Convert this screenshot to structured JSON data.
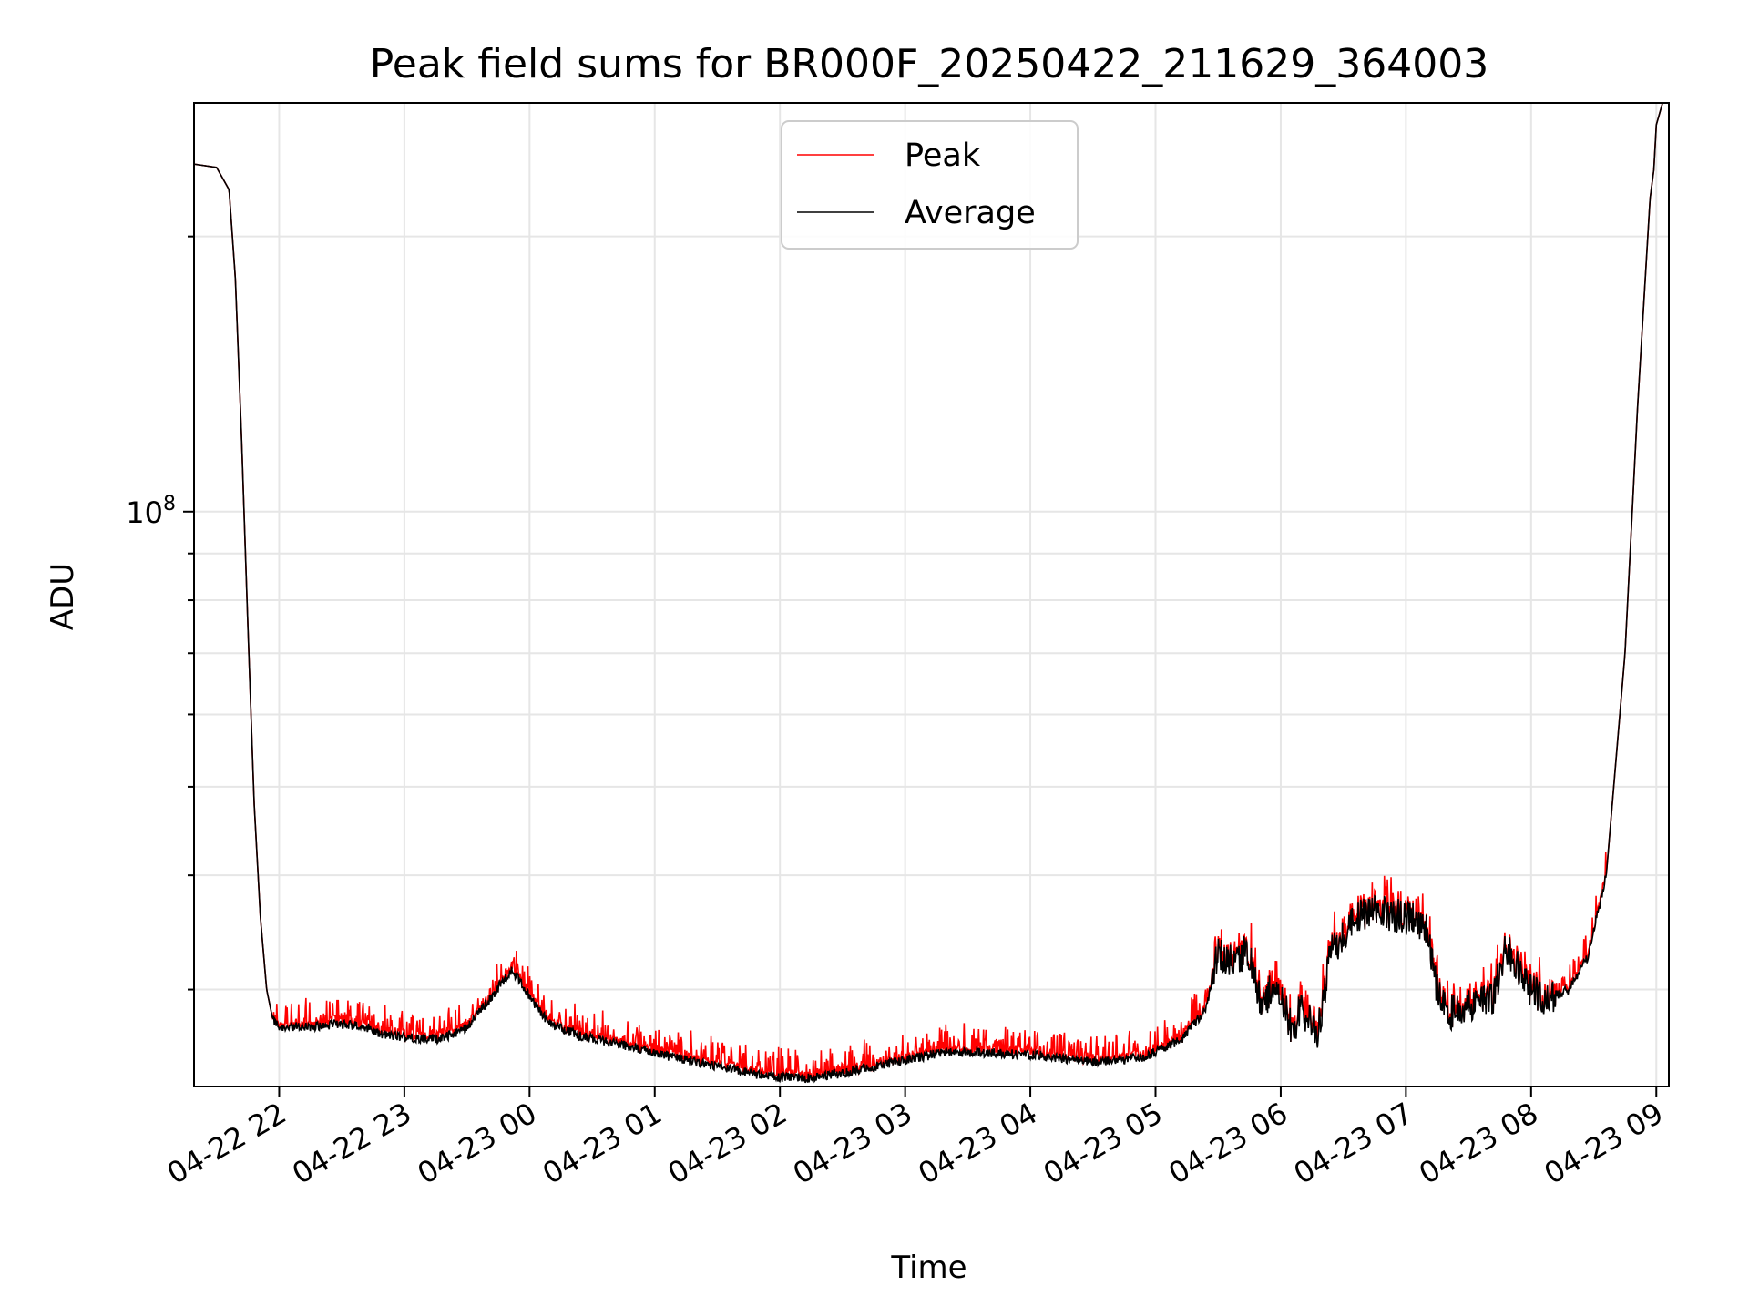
{
  "chart_data": {
    "type": "line",
    "title": "Peak field sums for BR000F_20250422_211629_364003",
    "xlabel": "Time",
    "ylabel": "ADU",
    "y_scale": "log",
    "y_major_ticks": [
      {
        "value": 100000000,
        "base": "10",
        "exp": "8"
      }
    ],
    "y_minor_ticks": [
      30000000,
      40000000,
      50000000,
      60000000,
      70000000,
      80000000,
      90000000,
      200000000
    ],
    "ylim": [
      23500000,
      280000000
    ],
    "x_ticks": [
      "04-22 22",
      "04-22 23",
      "04-23 00",
      "04-23 01",
      "04-23 02",
      "04-23 03",
      "04-23 04",
      "04-23 05",
      "04-23 06",
      "04-23 07",
      "04-23 08",
      "04-23 09"
    ],
    "xlim_hours": [
      21.32,
      33.1
    ],
    "grid": true,
    "legend": {
      "position": "top-center"
    },
    "series": [
      {
        "name": "Peak",
        "color": "#ff0000"
      },
      {
        "name": "Average",
        "color": "#000000"
      }
    ],
    "average_points": [
      [
        21.32,
        240000000
      ],
      [
        21.5,
        238000000
      ],
      [
        21.6,
        225000000
      ],
      [
        21.65,
        180000000
      ],
      [
        21.7,
        120000000
      ],
      [
        21.75,
        75000000
      ],
      [
        21.8,
        48000000
      ],
      [
        21.85,
        36000000
      ],
      [
        21.9,
        30000000
      ],
      [
        21.95,
        27800000
      ],
      [
        22.0,
        27300000
      ],
      [
        22.2,
        27300000
      ],
      [
        22.5,
        27500000
      ],
      [
        22.7,
        27300000
      ],
      [
        22.8,
        26800000
      ],
      [
        23.0,
        26600000
      ],
      [
        23.3,
        26500000
      ],
      [
        23.5,
        27300000
      ],
      [
        23.7,
        29500000
      ],
      [
        23.85,
        31500000
      ],
      [
        23.9,
        31000000
      ],
      [
        24.0,
        29500000
      ],
      [
        24.15,
        27600000
      ],
      [
        24.4,
        26700000
      ],
      [
        24.8,
        26000000
      ],
      [
        25.1,
        25400000
      ],
      [
        25.5,
        24700000
      ],
      [
        25.9,
        24100000
      ],
      [
        26.2,
        24000000
      ],
      [
        26.5,
        24300000
      ],
      [
        27.0,
        25100000
      ],
      [
        27.3,
        25600000
      ],
      [
        27.7,
        25600000
      ],
      [
        28.1,
        25400000
      ],
      [
        28.5,
        25000000
      ],
      [
        28.9,
        25300000
      ],
      [
        29.2,
        26400000
      ],
      [
        29.4,
        28500000
      ],
      [
        29.5,
        33000000
      ],
      [
        29.6,
        32500000
      ],
      [
        29.75,
        33000000
      ],
      [
        29.85,
        28500000
      ],
      [
        29.95,
        31000000
      ],
      [
        30.1,
        26800000
      ],
      [
        30.15,
        28500000
      ],
      [
        30.3,
        27000000
      ],
      [
        30.4,
        33000000
      ],
      [
        30.6,
        36000000
      ],
      [
        30.8,
        36500000
      ],
      [
        31.0,
        36000000
      ],
      [
        31.15,
        35500000
      ],
      [
        31.25,
        30000000
      ],
      [
        31.35,
        28300000
      ],
      [
        31.55,
        29000000
      ],
      [
        31.7,
        29500000
      ],
      [
        31.8,
        33500000
      ],
      [
        31.9,
        31500000
      ],
      [
        32.0,
        30000000
      ],
      [
        32.15,
        29300000
      ],
      [
        32.3,
        30000000
      ],
      [
        32.45,
        32500000
      ],
      [
        32.6,
        40000000
      ],
      [
        32.75,
        70000000
      ],
      [
        32.85,
        130000000
      ],
      [
        32.95,
        220000000
      ],
      [
        33.05,
        280000000
      ]
    ]
  }
}
